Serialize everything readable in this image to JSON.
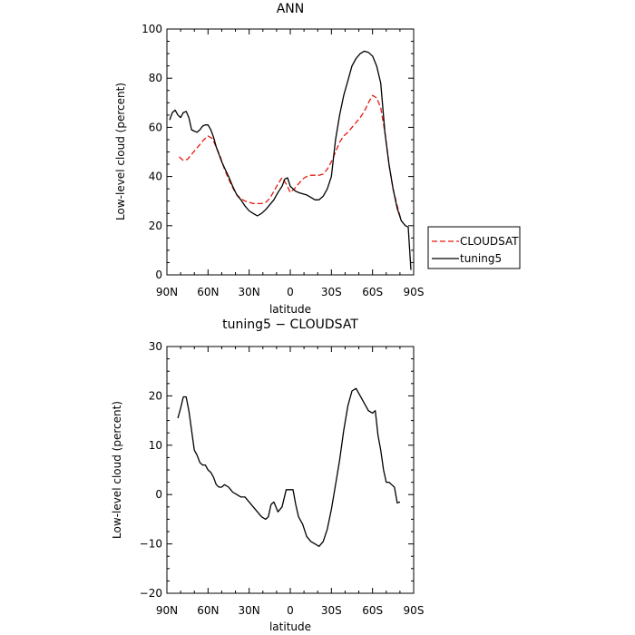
{
  "colors": {
    "cloudsat": "#e8180c",
    "tuning5": "#000000",
    "axis": "#000000"
  },
  "chart_data": [
    {
      "type": "line",
      "title": "ANN",
      "xlabel": "latitude",
      "ylabel": "Low-level cloud (percent)",
      "x_tick_labels": [
        "90N",
        "60N",
        "30N",
        "0",
        "30S",
        "60S",
        "90S"
      ],
      "xlim": [
        90,
        -90
      ],
      "ylim": [
        0,
        100
      ],
      "y_ticks": [
        "0",
        "20",
        "40",
        "60",
        "80",
        "100"
      ],
      "legend": {
        "placement": "right",
        "entries": [
          "CLOUDSAT",
          "tuning5"
        ]
      },
      "series": [
        {
          "name": "CLOUDSAT",
          "style": "dashed",
          "x": [
            81,
            78,
            75,
            72,
            69,
            66,
            63,
            60,
            57,
            54,
            51,
            48,
            45,
            42,
            39,
            36,
            33,
            30,
            27,
            24,
            21,
            18,
            15,
            12,
            9,
            6,
            3,
            0,
            -3,
            -6,
            -9,
            -12,
            -15,
            -18,
            -21,
            -24,
            -27,
            -30,
            -33,
            -36,
            -39,
            -42,
            -45,
            -48,
            -51,
            -54,
            -57,
            -60,
            -63,
            -66,
            -69,
            -72,
            -75,
            -78,
            -81
          ],
          "values": [
            48,
            46.5,
            47,
            49,
            51,
            53,
            55,
            56.5,
            55.5,
            52,
            48,
            43,
            39,
            35.5,
            32.5,
            31,
            30,
            29.5,
            29,
            29,
            29,
            29.5,
            31,
            34,
            37,
            39.5,
            37,
            33.5,
            35,
            37,
            39,
            40,
            40.5,
            40.5,
            40.5,
            41,
            43,
            46,
            50,
            54,
            56.5,
            58,
            60,
            62,
            64,
            66.5,
            70,
            73,
            72,
            68,
            58,
            45,
            35,
            28,
            22
          ]
        },
        {
          "name": "tuning5",
          "style": "solid",
          "x": [
            88,
            86,
            84,
            82,
            80,
            78,
            76,
            74,
            72,
            70,
            68,
            66,
            64,
            62,
            60,
            58,
            56,
            54,
            52,
            50,
            48,
            45,
            42,
            39,
            36,
            33,
            30,
            27,
            24,
            21,
            18,
            15,
            12,
            9,
            6,
            4,
            2,
            0,
            -2,
            -4,
            -6,
            -9,
            -12,
            -15,
            -18,
            -21,
            -24,
            -27,
            -30,
            -33,
            -36,
            -39,
            -42,
            -45,
            -48,
            -51,
            -54,
            -57,
            -60,
            -63,
            -66,
            -69,
            -72,
            -75,
            -78,
            -81,
            -84,
            -86,
            -88
          ],
          "values": [
            63,
            66,
            67,
            65,
            64,
            66,
            66.5,
            64,
            59,
            58.5,
            58,
            59,
            60.5,
            61,
            61,
            59,
            56,
            52,
            49,
            46,
            43.5,
            40,
            36,
            32.5,
            30.5,
            28,
            26,
            25,
            24,
            25,
            26.5,
            28.5,
            30.5,
            33.5,
            36,
            39,
            39.5,
            36,
            35,
            34,
            33.5,
            33,
            32.5,
            31.5,
            30.5,
            30.5,
            32,
            35,
            40,
            55,
            65,
            73,
            79,
            85,
            88,
            90,
            91,
            90.5,
            89,
            85,
            78,
            58,
            45,
            35,
            27,
            22,
            20,
            19.5,
            2
          ]
        }
      ]
    },
    {
      "type": "line",
      "title": "tuning5 − CLOUDSAT",
      "xlabel": "latitude",
      "ylabel": "Low-level cloud (percent)",
      "x_tick_labels": [
        "90N",
        "60N",
        "30N",
        "0",
        "30S",
        "60S",
        "90S"
      ],
      "xlim": [
        90,
        -90
      ],
      "ylim": [
        -20,
        30
      ],
      "y_ticks": [
        "−20",
        "−10",
        "0",
        "10",
        "20",
        "30"
      ],
      "series": [
        {
          "style": "solid",
          "x": [
            82,
            80,
            78,
            76,
            74,
            72,
            70,
            68,
            66,
            64,
            62,
            60,
            58,
            56,
            54,
            52,
            50,
            48,
            45,
            42,
            39,
            36,
            33,
            30,
            27,
            24,
            21,
            18,
            16,
            14,
            12,
            9,
            6,
            3,
            0,
            -2,
            -4,
            -6,
            -9,
            -12,
            -15,
            -18,
            -21,
            -24,
            -27,
            -30,
            -33,
            -36,
            -39,
            -42,
            -45,
            -48,
            -51,
            -54,
            -57,
            -60,
            -62,
            -64,
            -66,
            -68,
            -70,
            -72,
            -74,
            -76,
            -78,
            -80
          ],
          "values": [
            15.5,
            17.5,
            19.8,
            19.8,
            17,
            13,
            9,
            8,
            6.5,
            6,
            6,
            5,
            4.5,
            3.5,
            2,
            1.5,
            1.5,
            2,
            1.5,
            0.5,
            0,
            -0.5,
            -0.5,
            -1.5,
            -2.5,
            -3.5,
            -4.5,
            -5,
            -4.5,
            -2,
            -1.5,
            -3.5,
            -2.5,
            1,
            1,
            1,
            -2,
            -4.5,
            -6,
            -8.5,
            -9.5,
            -10,
            -10.5,
            -9.5,
            -7,
            -3,
            2,
            7,
            13,
            18,
            21,
            21.5,
            20,
            18.5,
            17,
            16.5,
            17,
            12,
            9,
            5,
            2.5,
            2.5,
            2,
            1.5,
            -1.7,
            -1.5
          ]
        }
      ]
    }
  ]
}
